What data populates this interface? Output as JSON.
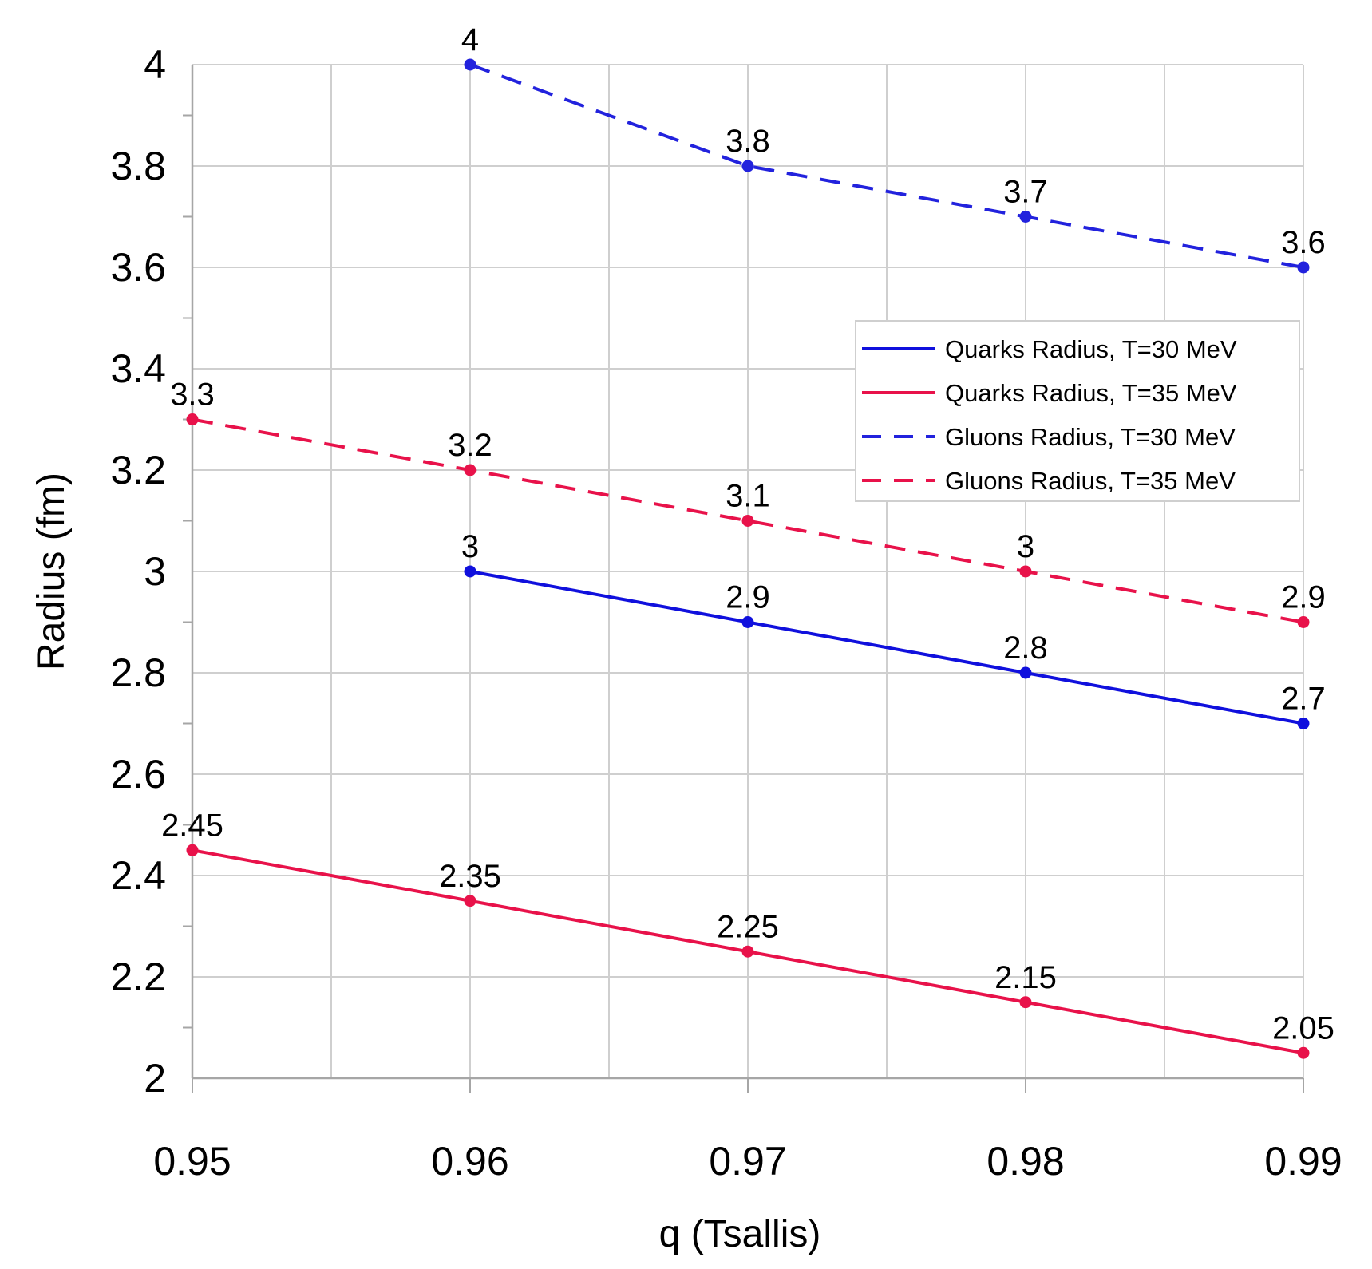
{
  "chart_data": {
    "type": "line",
    "title": "",
    "xlabel": "q (Tsallis)",
    "ylabel": "Radius (fm)",
    "xlim": [
      0.95,
      0.99
    ],
    "ylim": [
      2,
      4
    ],
    "x_ticks": [
      "0.95",
      "0.96",
      "0.97",
      "0.98",
      "0.99"
    ],
    "y_ticks": [
      "2",
      "2.2",
      "2.4",
      "2.6",
      "2.8",
      "3",
      "3.2",
      "3.4",
      "3.6",
      "3.8",
      "4"
    ],
    "grid": true,
    "legend_position": "right",
    "series": [
      {
        "name": "Quarks Radius, T=30 MeV",
        "color": "#1010dd",
        "style": "solid",
        "x": [
          0.96,
          0.97,
          0.98,
          0.99
        ],
        "y": [
          3,
          2.9,
          2.8,
          2.7
        ],
        "labels": [
          "3",
          "2.9",
          "2.8",
          "2.7"
        ]
      },
      {
        "name": "Quarks Radius, T=35 MeV",
        "color": "#e8124a",
        "style": "solid",
        "x": [
          0.95,
          0.96,
          0.97,
          0.98,
          0.99
        ],
        "y": [
          2.45,
          2.35,
          2.25,
          2.15,
          2.05
        ],
        "labels": [
          "2.45",
          "2.35",
          "2.25",
          "2.15",
          "2.05"
        ]
      },
      {
        "name": "Gluons Radius, T=30 MeV",
        "color": "#2222dd",
        "style": "dashed",
        "x": [
          0.96,
          0.97,
          0.98,
          0.99
        ],
        "y": [
          4,
          3.8,
          3.7,
          3.6
        ],
        "labels": [
          "4",
          "3.8",
          "3.7",
          "3.6"
        ]
      },
      {
        "name": "Gluons Radius, T=35 MeV",
        "color": "#e8124a",
        "style": "dashed",
        "x": [
          0.95,
          0.96,
          0.97,
          0.98,
          0.99
        ],
        "y": [
          3.3,
          3.2,
          3.1,
          3,
          2.9
        ],
        "labels": [
          "3.3",
          "3.2",
          "3.1",
          "3",
          "2.9"
        ]
      }
    ]
  }
}
